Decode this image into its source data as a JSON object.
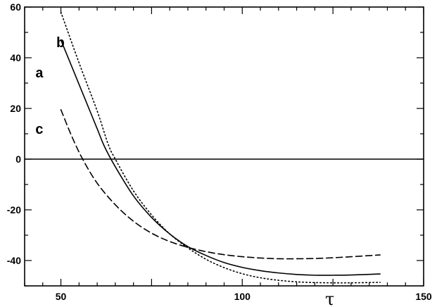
{
  "chart_data": {
    "type": "line",
    "title": "",
    "xlabel": "τ",
    "ylabel": "",
    "xlim": [
      40,
      150
    ],
    "ylim": [
      -50,
      60
    ],
    "xticks": [
      50,
      100,
      150
    ],
    "yticks": [
      60,
      40,
      20,
      0,
      -20,
      -40
    ],
    "grid": false,
    "legend": "none",
    "zero_line": true,
    "series": [
      {
        "name": "a",
        "style": "solid",
        "color": "#000000",
        "x": [
          50,
          55,
          60,
          62,
          65,
          70,
          75,
          80,
          85,
          90,
          95,
          100,
          105,
          110,
          115,
          120,
          125,
          130,
          138
        ],
        "y": [
          47,
          29.5,
          12,
          5,
          -3,
          -14.5,
          -23,
          -29.5,
          -34.5,
          -38,
          -40.8,
          -42.7,
          -44,
          -44.9,
          -45.5,
          -45.8,
          -45.8,
          -45.7,
          -45.3
        ]
      },
      {
        "name": "b",
        "style": "dotted",
        "color": "#000000",
        "x": [
          50,
          55,
          60,
          63,
          65,
          70,
          75,
          80,
          85,
          90,
          95,
          100,
          105,
          110,
          115,
          120,
          125,
          130,
          138
        ],
        "y": [
          58,
          38,
          19,
          6,
          0,
          -12.5,
          -22,
          -29.5,
          -35,
          -39.5,
          -42.8,
          -45.2,
          -46.8,
          -47.8,
          -48.4,
          -48.7,
          -48.8,
          -48.8,
          -48.6
        ]
      },
      {
        "name": "c",
        "style": "dashed",
        "color": "#000000",
        "x": [
          50,
          53,
          56,
          60,
          65,
          70,
          75,
          80,
          85,
          90,
          95,
          100,
          105,
          110,
          115,
          120,
          125,
          130,
          138
        ],
        "y": [
          19.5,
          9,
          0,
          -9.5,
          -18,
          -24.5,
          -29.2,
          -32.5,
          -34.8,
          -36.5,
          -37.7,
          -38.5,
          -39,
          -39.3,
          -39.3,
          -39.2,
          -38.9,
          -38.5,
          -37.8
        ]
      }
    ],
    "curve_labels": [
      {
        "text": "a",
        "series": "a"
      },
      {
        "text": "b",
        "series": "b"
      },
      {
        "text": "c",
        "series": "c"
      }
    ]
  }
}
